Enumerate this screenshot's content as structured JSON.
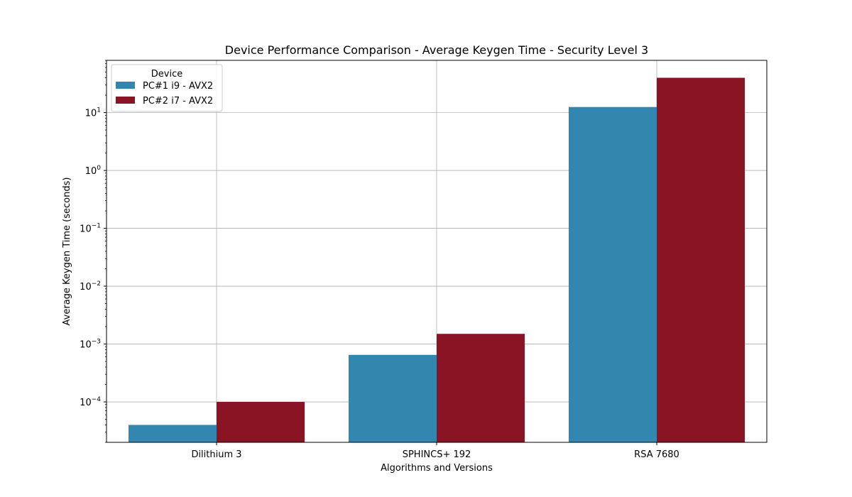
{
  "chart_data": {
    "type": "bar",
    "title": "Device Performance Comparison - Average Keygen Time - Security Level 3",
    "xlabel": "Algorithms and Versions",
    "ylabel": "Average Keygen Time (seconds)",
    "yscale": "log",
    "ylim": [
      2e-05,
      80
    ],
    "categories": [
      "Dilithium 3",
      "SPHINCS+ 192",
      "RSA 7680"
    ],
    "series": [
      {
        "name": "PC#1 i9 - AVX2",
        "color": "#3187b0",
        "values": [
          4e-05,
          0.00065,
          12.5
        ]
      },
      {
        "name": "PC#2 i7 - AVX2",
        "color": "#8a1424",
        "values": [
          0.0001,
          0.0015,
          40
        ]
      }
    ],
    "yticks": [
      {
        "value": 0.0001,
        "mantissa": "10",
        "exp": "−4"
      },
      {
        "value": 0.001,
        "mantissa": "10",
        "exp": "−3"
      },
      {
        "value": 0.01,
        "mantissa": "10",
        "exp": "−2"
      },
      {
        "value": 0.1,
        "mantissa": "10",
        "exp": "−1"
      },
      {
        "value": 1,
        "mantissa": "10",
        "exp": "0"
      },
      {
        "value": 10,
        "mantissa": "10",
        "exp": "1"
      }
    ],
    "grid": true,
    "legend": {
      "title": "Device",
      "placement": "top-left"
    }
  }
}
